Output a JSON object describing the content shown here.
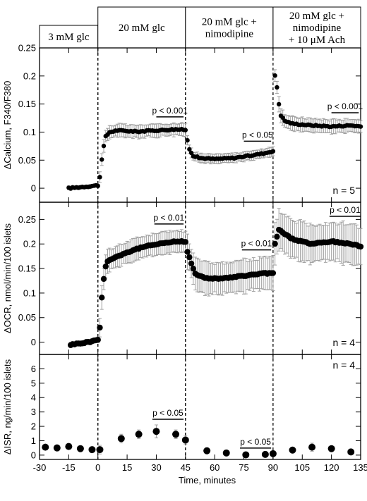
{
  "chart_data": {
    "type": "scatter",
    "x_axis": {
      "label": "Time, minutes",
      "range": [
        -30,
        135
      ],
      "ticks": [
        -30,
        -15,
        0,
        15,
        30,
        45,
        60,
        75,
        90,
        105,
        120,
        135
      ],
      "tick_labels": [
        "-30",
        "-15",
        "0",
        "15",
        "30",
        "45",
        "60",
        "75",
        "90",
        "105",
        "120",
        "135"
      ]
    },
    "conditions": [
      {
        "label_lines": [
          "3 mM glc"
        ],
        "start": -30,
        "end": 0
      },
      {
        "label_lines": [
          "20 mM glc"
        ],
        "start": 0,
        "end": 45
      },
      {
        "label_lines": [
          "20 mM glc +",
          "nimodipine"
        ],
        "start": 45,
        "end": 90
      },
      {
        "label_lines": [
          "20 mM glc +",
          "nimodipine",
          "+ 10 μM Ach"
        ],
        "start": 90,
        "end": 135
      }
    ],
    "condition_boundaries": [
      0,
      45,
      90
    ],
    "panels": [
      {
        "ylabel": "ΔCalcium, F340/F380",
        "ylim": [
          -0.025,
          0.25
        ],
        "yticks": [
          0,
          0.05,
          0.1,
          0.15,
          0.2,
          0.25
        ],
        "ytick_labels": [
          "0",
          "0.05",
          "0.1",
          "0.15",
          "0.2",
          "0.25"
        ],
        "n_label": "n = 5",
        "annotations": [
          {
            "text": "p < 0.001",
            "x_start": 30,
            "x_end": 44
          },
          {
            "text": "p < 0.05",
            "x_start": 75,
            "x_end": 89
          },
          {
            "text": "p < 0.001",
            "x_start": 120,
            "x_end": 134
          }
        ],
        "marker_size": "small",
        "segments": [
          {
            "x_start": -15,
            "x_end": 0,
            "step": 1,
            "anchors": [
              [
                -15,
                0.0
              ],
              [
                0,
                0.005
              ]
            ],
            "err": 0.003
          },
          {
            "x_start": 1,
            "x_end": 45,
            "step": 1,
            "anchors": [
              [
                1,
                0.02
              ],
              [
                2,
                0.05
              ],
              [
                3,
                0.075
              ],
              [
                4,
                0.092
              ],
              [
                6,
                0.1
              ],
              [
                10,
                0.103
              ],
              [
                20,
                0.101
              ],
              [
                30,
                0.103
              ],
              [
                40,
                0.105
              ],
              [
                45,
                0.104
              ]
            ],
            "err": 0.011
          },
          {
            "x_start": 46,
            "x_end": 90,
            "step": 1,
            "anchors": [
              [
                46,
                0.085
              ],
              [
                47,
                0.07
              ],
              [
                49,
                0.058
              ],
              [
                52,
                0.054
              ],
              [
                60,
                0.052
              ],
              [
                70,
                0.054
              ],
              [
                78,
                0.058
              ],
              [
                85,
                0.062
              ],
              [
                90,
                0.066
              ]
            ],
            "err": 0.008
          },
          {
            "x_start": 91,
            "x_end": 135,
            "step": 1,
            "anchors": [
              [
                91,
                0.2
              ],
              [
                92,
                0.18
              ],
              [
                93,
                0.15
              ],
              [
                94,
                0.13
              ],
              [
                96,
                0.12
              ],
              [
                100,
                0.115
              ],
              [
                110,
                0.112
              ],
              [
                120,
                0.11
              ],
              [
                130,
                0.112
              ],
              [
                135,
                0.11
              ]
            ],
            "err": 0.012
          }
        ]
      },
      {
        "ylabel": "ΔOCR, nmol/min/100 islets",
        "ylim": [
          -0.025,
          0.285
        ],
        "yticks": [
          0,
          0.05,
          0.1,
          0.15,
          0.2,
          0.25
        ],
        "ytick_labels": [
          "0",
          "0.05",
          "0.1",
          "0.15",
          "0.2",
          "0.25"
        ],
        "n_label": "n = 4",
        "annotations": [
          {
            "text": "p < 0.01",
            "x_start": 29,
            "x_end": 44
          },
          {
            "text": "p < 0.01",
            "x_start": 74,
            "x_end": 89
          },
          {
            "text": "p < 0.01",
            "x_start": 119,
            "x_end": 135
          }
        ],
        "marker_size": "medium",
        "segments": [
          {
            "x_start": -14,
            "x_end": 0,
            "step": 1,
            "anchors": [
              [
                -14,
                -0.005
              ],
              [
                -5,
                0.0
              ],
              [
                0,
                0.005
              ]
            ],
            "err": 0.005
          },
          {
            "x_start": 1,
            "x_end": 45,
            "step": 1,
            "anchors": [
              [
                1,
                0.03
              ],
              [
                2,
                0.09
              ],
              [
                3,
                0.13
              ],
              [
                4,
                0.155
              ],
              [
                5,
                0.165
              ],
              [
                10,
                0.175
              ],
              [
                20,
                0.19
              ],
              [
                30,
                0.2
              ],
              [
                40,
                0.205
              ],
              [
                45,
                0.205
              ]
            ],
            "err": 0.022
          },
          {
            "x_start": 46,
            "x_end": 90,
            "step": 1,
            "anchors": [
              [
                46,
                0.185
              ],
              [
                48,
                0.16
              ],
              [
                50,
                0.14
              ],
              [
                55,
                0.13
              ],
              [
                65,
                0.13
              ],
              [
                75,
                0.135
              ],
              [
                85,
                0.14
              ],
              [
                90,
                0.14
              ]
            ],
            "err": 0.032
          },
          {
            "x_start": 91,
            "x_end": 135,
            "step": 1,
            "anchors": [
              [
                91,
                0.2
              ],
              [
                93,
                0.23
              ],
              [
                96,
                0.22
              ],
              [
                100,
                0.21
              ],
              [
                110,
                0.2
              ],
              [
                120,
                0.205
              ],
              [
                130,
                0.2
              ],
              [
                135,
                0.195
              ]
            ],
            "err": 0.04
          }
        ]
      },
      {
        "ylabel": "ΔISR, ng/min/100 islets",
        "ylim": [
          -0.3,
          7.0
        ],
        "yticks": [
          0,
          1,
          2,
          3,
          4,
          5,
          6
        ],
        "ytick_labels": [
          "0",
          "1",
          "2",
          "3",
          "4",
          "5",
          "6"
        ],
        "n_label": "n = 4",
        "annotations": [
          {
            "text": "p < 0.05",
            "x_start": 28,
            "x_end": 44
          },
          {
            "text": "p < 0.05",
            "x_start": 73,
            "x_end": 89
          }
        ],
        "marker_size": "large",
        "points": [
          {
            "x": -27,
            "y": 0.55,
            "err": 0.08
          },
          {
            "x": -21,
            "y": 0.5,
            "err": 0.08
          },
          {
            "x": -15,
            "y": 0.6,
            "err": 0.1
          },
          {
            "x": -9,
            "y": 0.45,
            "err": 0.08
          },
          {
            "x": -3,
            "y": 0.38,
            "err": 0.08
          },
          {
            "x": 1,
            "y": 0.38,
            "err": 0.3
          },
          {
            "x": 12,
            "y": 1.15,
            "err": 0.3
          },
          {
            "x": 21,
            "y": 1.45,
            "err": 0.3
          },
          {
            "x": 30,
            "y": 1.65,
            "err": 0.45
          },
          {
            "x": 40,
            "y": 1.45,
            "err": 0.3
          },
          {
            "x": 45,
            "y": 1.05,
            "err": 0.28
          },
          {
            "x": 56,
            "y": 0.3,
            "err": 0.0
          },
          {
            "x": 66,
            "y": 0.15,
            "err": 0.0
          },
          {
            "x": 76,
            "y": 0.02,
            "err": 0.0
          },
          {
            "x": 86,
            "y": 0.05,
            "err": 0.0
          },
          {
            "x": 90,
            "y": 0.1,
            "err": 0.0
          },
          {
            "x": 100,
            "y": 0.35,
            "err": 0.08
          },
          {
            "x": 110,
            "y": 0.55,
            "err": 0.28
          },
          {
            "x": 120,
            "y": 0.45,
            "err": 0.1
          },
          {
            "x": 130,
            "y": 0.22,
            "err": 0.08
          }
        ]
      }
    ]
  }
}
